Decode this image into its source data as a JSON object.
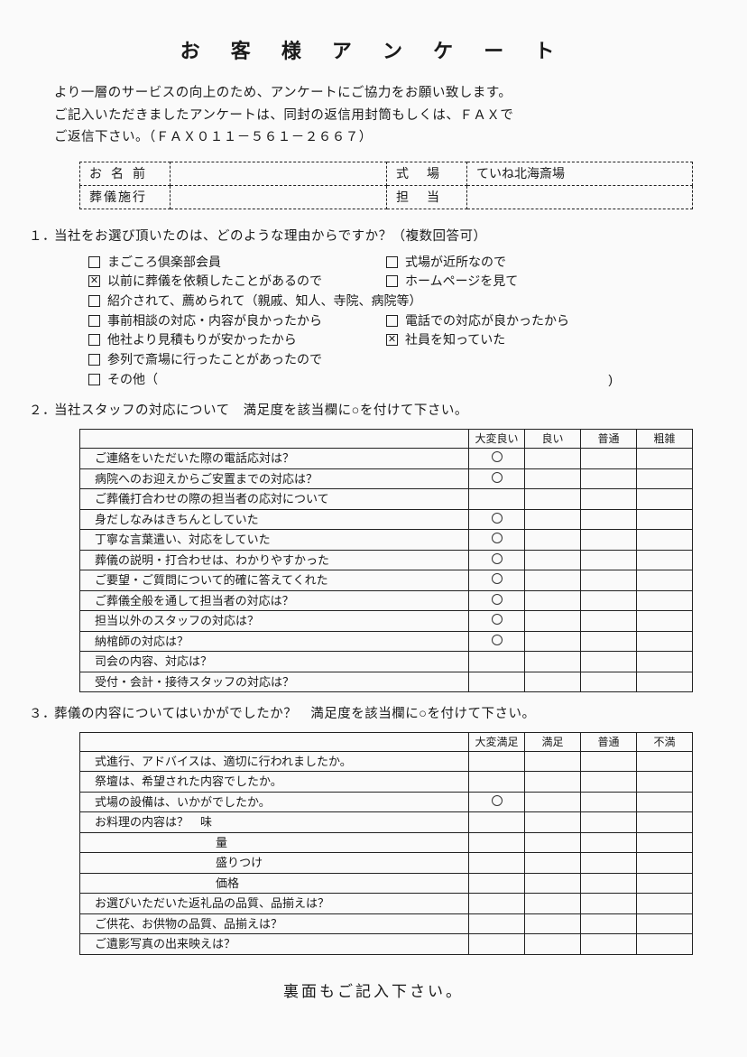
{
  "title": "お 客 様 ア ン ケ ー ト",
  "intro_lines": [
    "より一層のサービスの向上のため、アンケートにご協力をお願い致します。",
    "ご記入いただきましたアンケートは、同封の返信用封筒もしくは、ＦＡＸで",
    "ご返信下さい。（ＦＡＸ０１１－５６１－２６６７）"
  ],
  "info": {
    "name_label": "お名前",
    "name_value": "",
    "venue_label": "式場",
    "venue_value": "ていね北海斎場",
    "agent_label": "葬儀施行",
    "agent_value": "",
    "staff_label": "担当",
    "staff_value": ""
  },
  "q1": {
    "num": "１．",
    "title": "当社をお選び頂いたのは、どのような理由からですか？（複数回答可）",
    "left": [
      {
        "checked": false,
        "label": "まごころ倶楽部会員"
      },
      {
        "checked": true,
        "label": "以前に葬儀を依頼したことがあるので"
      },
      {
        "checked": false,
        "label": "紹介されて、薦められて（親戚、知人、寺院、病院等）"
      },
      {
        "checked": false,
        "label": "事前相談の対応・内容が良かったから"
      },
      {
        "checked": false,
        "label": "他社より見積もりが安かったから"
      },
      {
        "checked": false,
        "label": "参列で斎場に行ったことがあったので"
      },
      {
        "checked": false,
        "label": "その他（",
        "is_other": true
      }
    ],
    "right": [
      {
        "checked": false,
        "label": "式場が近所なので"
      },
      {
        "checked": false,
        "label": "ホームページを見て"
      },
      {
        "skip": true
      },
      {
        "checked": false,
        "label": "電話での対応が良かったから"
      },
      {
        "checked": true,
        "label": "社員を知っていた"
      }
    ]
  },
  "q2": {
    "num": "２．",
    "title": "当社スタッフの対応について　満足度を該当欄に○を付けて下さい。",
    "headers": [
      "",
      "大変良い",
      "良い",
      "普通",
      "粗雑"
    ],
    "rows": [
      {
        "q": "ご連絡をいただいた際の電話応対は？",
        "mark": 0
      },
      {
        "q": "病院へのお迎えからご安置までの対応は？",
        "mark": 0
      },
      {
        "q": "ご葬儀打合わせの際の担当者の応対について",
        "mark": null
      },
      {
        "q": "身だしなみはきちんとしていた",
        "mark": 0
      },
      {
        "q": "丁寧な言葉遣い、対応をしていた",
        "mark": 0
      },
      {
        "q": "葬儀の説明・打合わせは、わかりやすかった",
        "mark": 0
      },
      {
        "q": "ご要望・ご質問について的確に答えてくれた",
        "mark": 0
      },
      {
        "q": "ご葬儀全般を通して担当者の対応は？",
        "mark": 0
      },
      {
        "q": "担当以外のスタッフの対応は？",
        "mark": 0
      },
      {
        "q": "納棺師の対応は？",
        "mark": 0
      },
      {
        "q": "司会の内容、対応は？",
        "mark": null
      },
      {
        "q": "受付・会計・接待スタッフの対応は？",
        "mark": null
      }
    ]
  },
  "q3": {
    "num": "３．",
    "title": "葬儀の内容についてはいかがでしたか？　満足度を該当欄に○を付けて下さい。",
    "headers": [
      "",
      "大変満足",
      "満足",
      "普通",
      "不満"
    ],
    "rows": [
      {
        "q": "式進行、アドバイスは、適切に行われましたか。",
        "mark": null
      },
      {
        "q": "祭壇は、希望された内容でしたか。",
        "mark": null
      },
      {
        "q": "式場の設備は、いかがでしたか。",
        "mark": 0
      },
      {
        "q": "お料理の内容は？　味",
        "mark": null
      },
      {
        "q": "量",
        "mark": null,
        "sub": true
      },
      {
        "q": "盛りつけ",
        "mark": null,
        "sub": true
      },
      {
        "q": "価格",
        "mark": null,
        "sub": true
      },
      {
        "q": "お選びいただいた返礼品の品質、品揃えは？",
        "mark": null
      },
      {
        "q": "ご供花、お供物の品質、品揃えは？",
        "mark": null
      },
      {
        "q": "ご遺影写真の出来映えは？",
        "mark": null
      }
    ]
  },
  "footer": "裏面もご記入下さい。"
}
